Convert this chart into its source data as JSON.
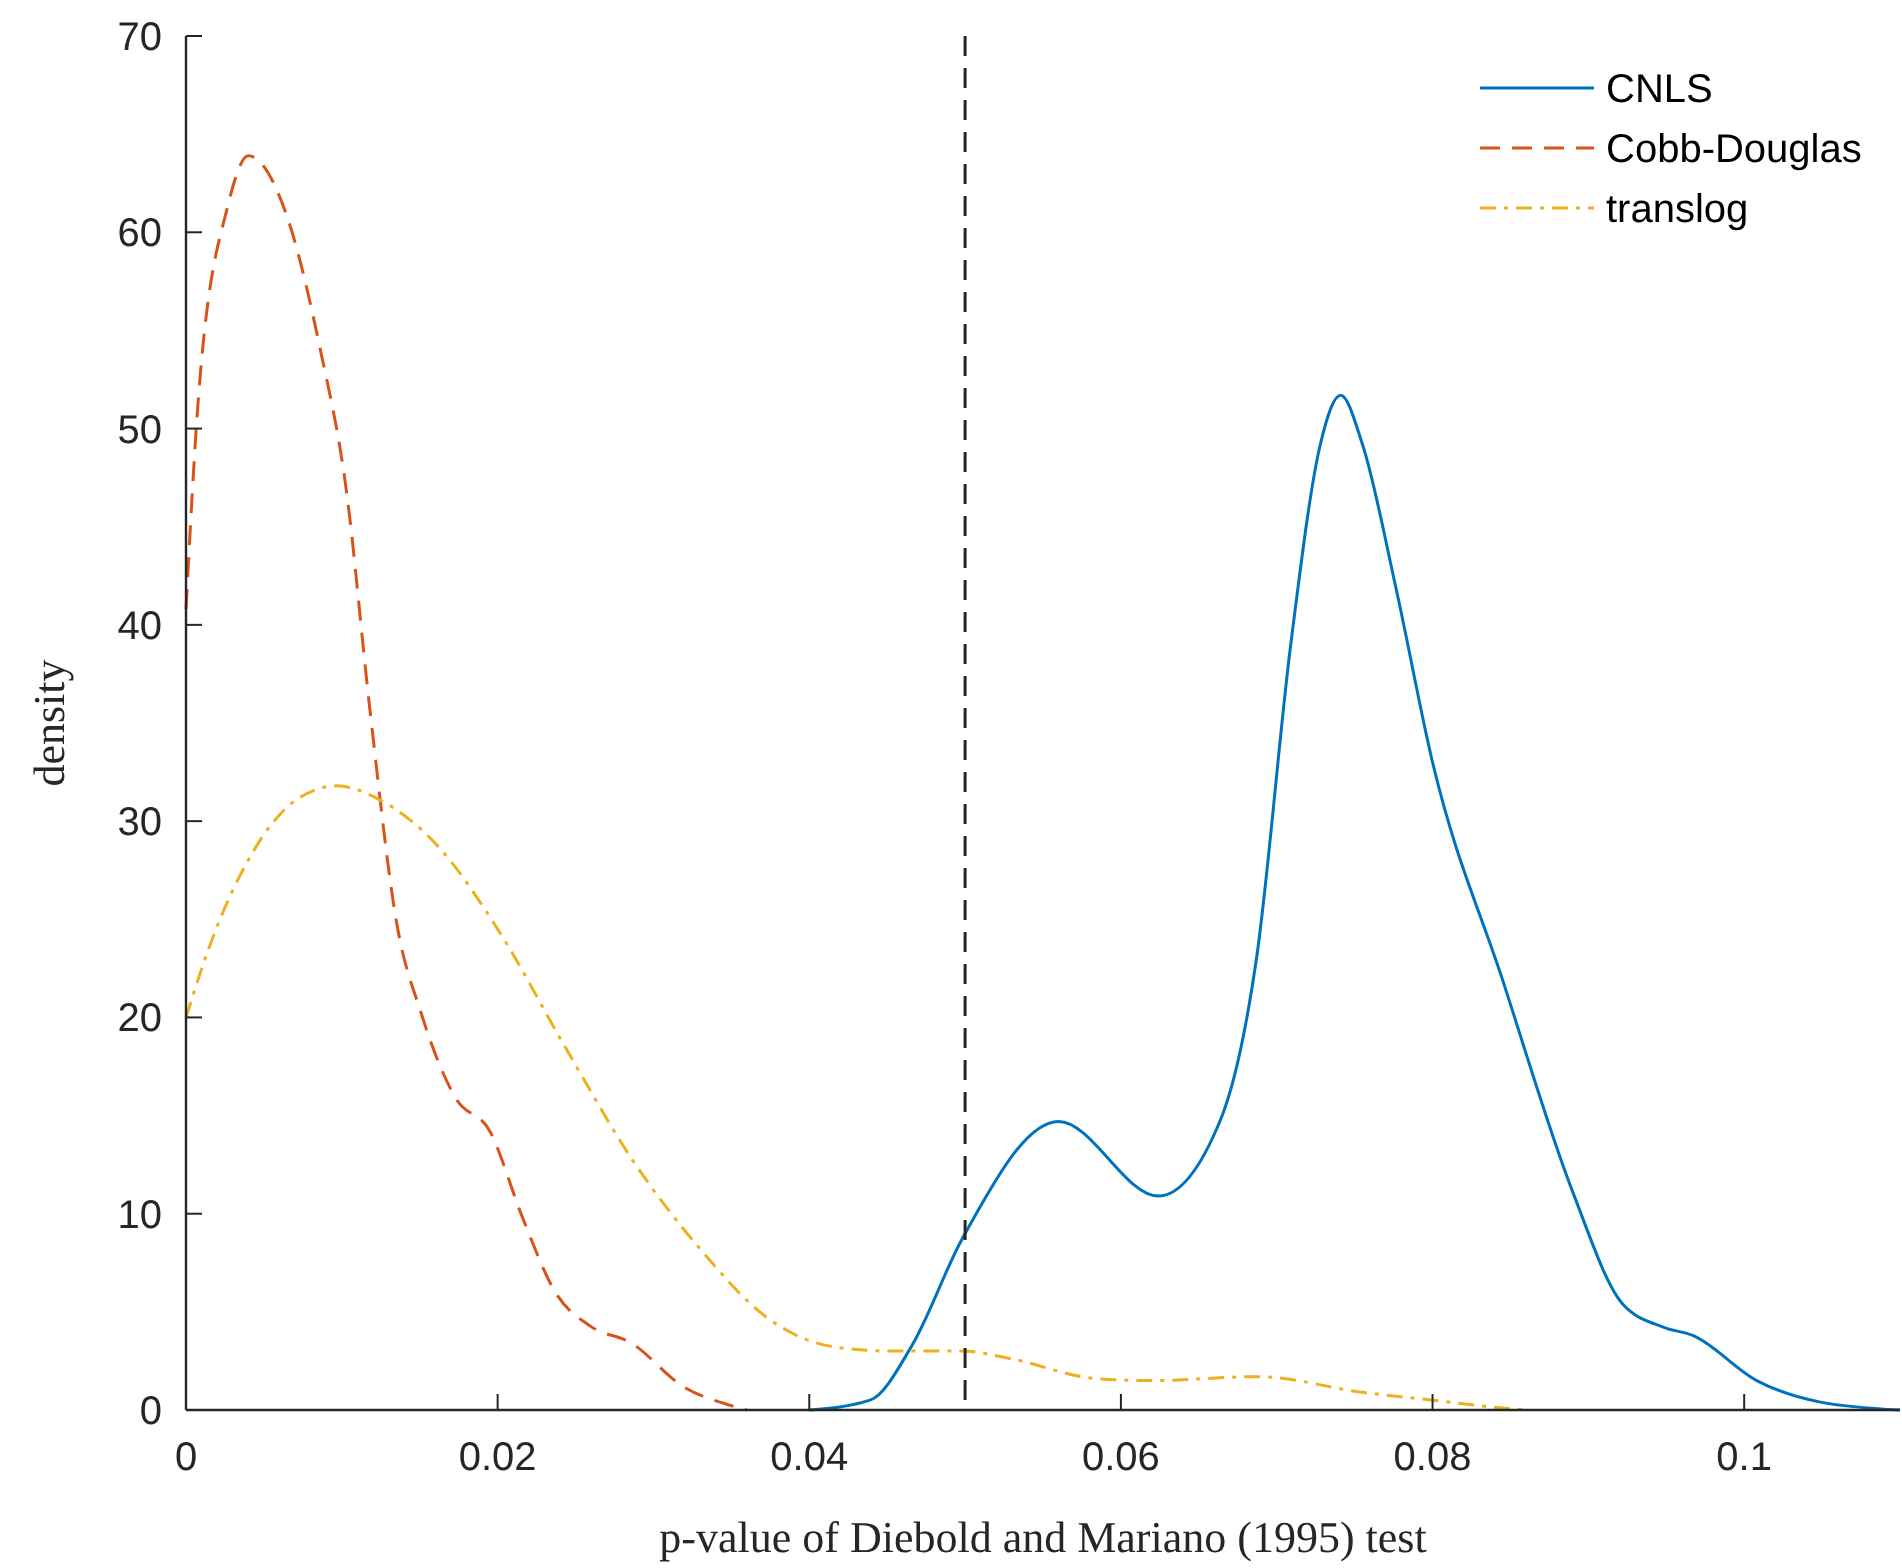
{
  "chart_data": {
    "type": "line",
    "xlabel": "p-value of Diebold and Mariano (1995) test",
    "ylabel": "density",
    "xlim": [
      0,
      0.11
    ],
    "xticks": [
      {
        "value": 0,
        "label": "0"
      },
      {
        "value": 0.02,
        "label": "0.02"
      },
      {
        "value": 0.04,
        "label": "0.04"
      },
      {
        "value": 0.06,
        "label": "0.06"
      },
      {
        "value": 0.08,
        "label": "0.08"
      },
      {
        "value": 0.1,
        "label": "0.1"
      }
    ],
    "ylim": [
      0,
      70
    ],
    "yticks": [
      0,
      10,
      20,
      30,
      40,
      50,
      60,
      70
    ],
    "grid": false,
    "legend": "top right",
    "ref_lines": [
      {
        "axis": "x",
        "value": 0.05,
        "color": "#262626",
        "line_style": "dashed"
      }
    ],
    "series": [
      {
        "name": "CNLS",
        "color": "#0072bd",
        "line_style": "solid",
        "x": [
          0.04,
          0.0439,
          0.0466,
          0.0498,
          0.056,
          0.0624,
          0.0664,
          0.0687,
          0.0709,
          0.0728,
          0.0741,
          0.0755,
          0.0777,
          0.08,
          0.0845,
          0.089,
          0.0922,
          0.0949,
          0.0967,
          0.1008,
          0.1049,
          0.11
        ],
        "values": [
          0,
          0.5,
          3.3,
          8.7,
          14.7,
          10.9,
          14.8,
          23,
          39,
          49.2,
          51.7,
          49.2,
          41.7,
          33,
          21.9,
          11.1,
          5.4,
          4.2,
          3.8,
          1.5,
          0.4,
          0
        ]
      },
      {
        "name": "Cobb-Douglas",
        "color": "#d95319",
        "line_style": "dashed",
        "x": [
          0,
          0.0008,
          0.0027,
          0.004,
          0.0064,
          0.0086,
          0.0103,
          0.0118,
          0.0135,
          0.0151,
          0.0173,
          0.0195,
          0.0216,
          0.0237,
          0.0259,
          0.0286,
          0.0319,
          0.0351,
          0.036
        ],
        "values": [
          40.8,
          51.6,
          61.4,
          63.9,
          61,
          54.1,
          46.8,
          35.7,
          24.9,
          20.2,
          15.9,
          14.2,
          9.8,
          6,
          4.3,
          3.4,
          1.2,
          0.2,
          0
        ]
      },
      {
        "name": "translog",
        "color": "#edb120",
        "line_style": "dashdot",
        "x": [
          0,
          0.0015,
          0.0042,
          0.0071,
          0.0097,
          0.0124,
          0.0162,
          0.02,
          0.0244,
          0.0286,
          0.033,
          0.0373,
          0.0417,
          0.0454,
          0.0498,
          0.053,
          0.0584,
          0.062,
          0.0688,
          0.0755,
          0.08,
          0.0845,
          0.086
        ],
        "values": [
          20,
          23.6,
          28.3,
          31.1,
          31.8,
          31.1,
          28.7,
          24.5,
          18.4,
          12.8,
          8.2,
          4.7,
          3.2,
          3,
          3,
          2.6,
          1.6,
          1.5,
          1.7,
          0.9,
          0.5,
          0.1,
          0
        ]
      }
    ]
  }
}
